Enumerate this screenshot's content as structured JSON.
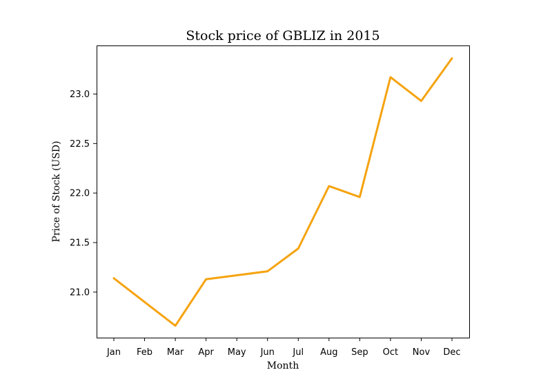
{
  "chart_data": {
    "type": "line",
    "title": "Stock price of GBLIZ in 2015",
    "xlabel": "Month",
    "ylabel": "Price of Stock (USD)",
    "categories": [
      "Jan",
      "Feb",
      "Mar",
      "Apr",
      "May",
      "Jun",
      "Jul",
      "Aug",
      "Sep",
      "Oct",
      "Nov",
      "Dec"
    ],
    "series": [
      {
        "color": "#f5a30f",
        "values": [
          21.14,
          20.9,
          20.66,
          21.13,
          21.17,
          21.21,
          21.44,
          22.07,
          21.96,
          23.17,
          22.93,
          23.36
        ]
      }
    ],
    "ylim": [
      20.54,
      23.49
    ],
    "yticks": [
      21.0,
      21.5,
      22.0,
      22.5,
      23.0
    ],
    "ytick_labels": [
      "21.0",
      "21.5",
      "22.0",
      "22.5",
      "23.0"
    ],
    "grid": false
  }
}
